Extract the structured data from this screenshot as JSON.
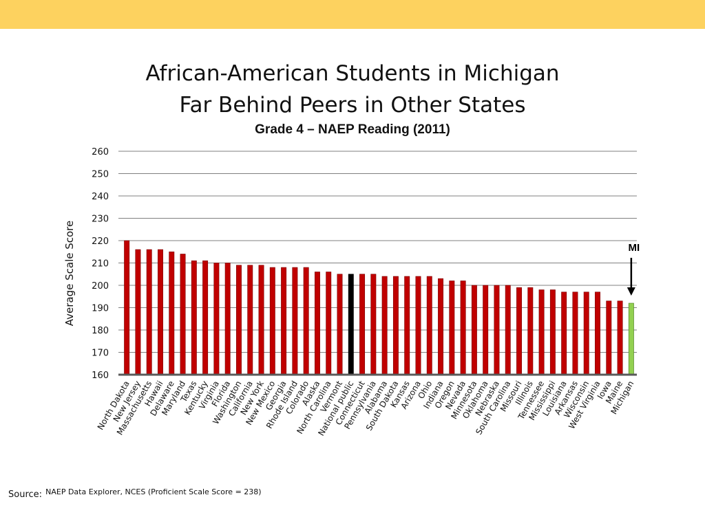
{
  "theme": {
    "band_color": "#fdd25f",
    "bar_color": "#c00000",
    "bar_edge": "#7a0000",
    "national_color": "#000000",
    "michigan_color": "#92d050",
    "michigan_edge": "#4a7a1f",
    "grid_color": "#7f7f7f"
  },
  "slide": {
    "title_line1": "African-American Students in Michigan",
    "title_line2": "Far Behind Peers in Other States",
    "source_label": "Source:",
    "source_text": "NAEP Data Explorer, NCES (Proficient Scale Score = 238)"
  },
  "chart_data": {
    "type": "bar",
    "title": "Grade 4 – NAEP Reading (2011)",
    "xlabel": "",
    "ylabel": "Average Scale Score",
    "ylim": [
      160,
      260
    ],
    "yticks": [
      160,
      170,
      180,
      190,
      200,
      210,
      220,
      230,
      240,
      250,
      260
    ],
    "grid": true,
    "categories": [
      "North Dakota",
      "New Jersey",
      "Massachusetts",
      "Hawaii",
      "Delaware",
      "Maryland",
      "Texas",
      "Kentucky",
      "Virginia",
      "Florida",
      "Washington",
      "California",
      "New York",
      "New Mexico",
      "Georgia",
      "Rhode Island",
      "Colorado",
      "Alaska",
      "North Carolina",
      "Vermont",
      "National public",
      "Connecticut",
      "Pennsylvania",
      "Alabama",
      "South Dakota",
      "Kansas",
      "Arizona",
      "Ohio",
      "Indiana",
      "Oregon",
      "Nevada",
      "Minnesota",
      "Oklahoma",
      "Nebraska",
      "South Carolina",
      "Missouri",
      "Illinois",
      "Tennessee",
      "Mississippi",
      "Louisiana",
      "Arkansas",
      "Wisconsin",
      "West Virginia",
      "Iowa",
      "Maine",
      "Michigan"
    ],
    "values": [
      220,
      216,
      216,
      216,
      215,
      214,
      211,
      211,
      210,
      210,
      209,
      209,
      209,
      208,
      208,
      208,
      208,
      206,
      206,
      205,
      205,
      205,
      205,
      204,
      204,
      204,
      204,
      204,
      203,
      202,
      202,
      200,
      200,
      200,
      200,
      199,
      199,
      198,
      198,
      197,
      197,
      197,
      197,
      193,
      193,
      192
    ],
    "highlights": {
      "National public": "national",
      "Michigan": "michigan"
    },
    "annotation": {
      "label": "MI",
      "target": "Michigan"
    }
  }
}
